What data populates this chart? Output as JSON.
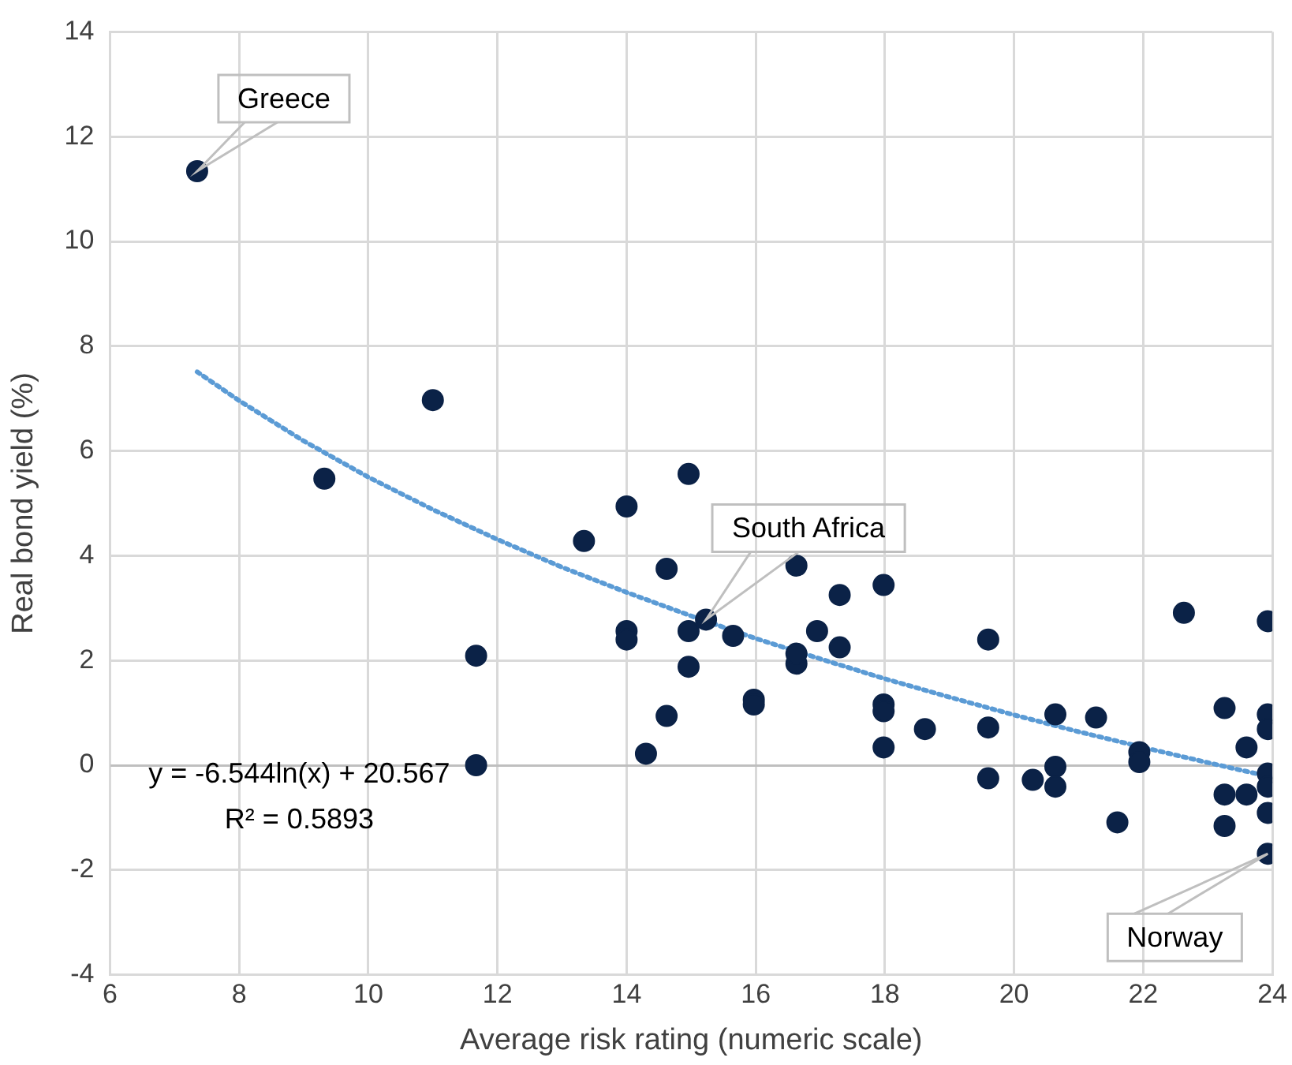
{
  "chart_data": {
    "type": "scatter",
    "xlabel": "Average risk rating (numeric scale)",
    "ylabel": "Real bond yield (%)",
    "xlim": [
      6,
      24
    ],
    "xticks": [
      6,
      8,
      10,
      12,
      14,
      16,
      18,
      20,
      22,
      24
    ],
    "ylim": [
      -4,
      14
    ],
    "yticks": [
      -4,
      -2,
      0,
      2,
      4,
      6,
      8,
      10,
      12,
      14
    ],
    "grid": true,
    "legend": false,
    "series": [
      {
        "color": "#0b2247",
        "marker": "circle",
        "x": [
          7.35,
          9.32,
          11.0,
          11.67,
          11.67,
          13.34,
          14.0,
          14.0,
          14.0,
          14.62,
          14.3,
          14.62,
          14.96,
          14.96,
          14.96,
          15.23,
          15.65,
          16.63,
          15.97,
          15.97,
          16.63,
          16.63,
          16.95,
          17.3,
          17.3,
          17.98,
          17.98,
          17.98,
          17.98,
          18.62,
          19.6,
          19.6,
          19.6,
          20.29,
          20.64,
          20.64,
          20.64,
          21.27,
          21.6,
          21.94,
          21.94,
          22.63,
          23.26,
          23.26,
          23.26,
          23.6,
          23.6,
          23.93,
          23.93,
          23.93,
          23.93,
          23.93,
          23.93,
          23.93
        ],
        "values": [
          11.34,
          5.47,
          6.97,
          2.09,
          0,
          4.28,
          4.94,
          2.56,
          2.4,
          3.75,
          0.22,
          0.94,
          5.56,
          2.56,
          1.88,
          2.78,
          2.47,
          3.81,
          1.25,
          1.16,
          1.94,
          2.13,
          2.56,
          3.25,
          2.25,
          3.44,
          1.16,
          1.03,
          0.34,
          0.69,
          2.4,
          0.72,
          -0.25,
          -0.28,
          0.97,
          -0.03,
          -0.41,
          0.91,
          -1.09,
          0.25,
          0.06,
          2.91,
          1.09,
          -0.56,
          -1.16,
          0.34,
          -0.56,
          2.75,
          0.97,
          0.69,
          -0.16,
          -0.41,
          -0.91,
          -1.69
        ]
      },
      {
        "type": "line",
        "color": "#5b9bd5",
        "marker": "none",
        "line_style": "dotted",
        "x": [
          7.35,
          8,
          9,
          10,
          11,
          12,
          13,
          14,
          15,
          16,
          17,
          18,
          19,
          20,
          21,
          22,
          23,
          24
        ],
        "values": [
          7.51,
          6.96,
          6.19,
          5.5,
          4.88,
          4.31,
          3.78,
          3.3,
          2.85,
          2.42,
          2.03,
          1.65,
          1.3,
          0.96,
          0.64,
          0.34,
          0.05,
          -0.23
        ]
      }
    ],
    "annotations": [
      {
        "text": "Greece",
        "x": 7.35,
        "y": 11.34
      },
      {
        "text": "South Africa",
        "x": 15.23,
        "y": 2.78
      },
      {
        "text": "Norway",
        "x": 23.93,
        "y": -1.69
      },
      "y = -6.544ln(x) + 20.567",
      "R² = 0.5893"
    ]
  }
}
